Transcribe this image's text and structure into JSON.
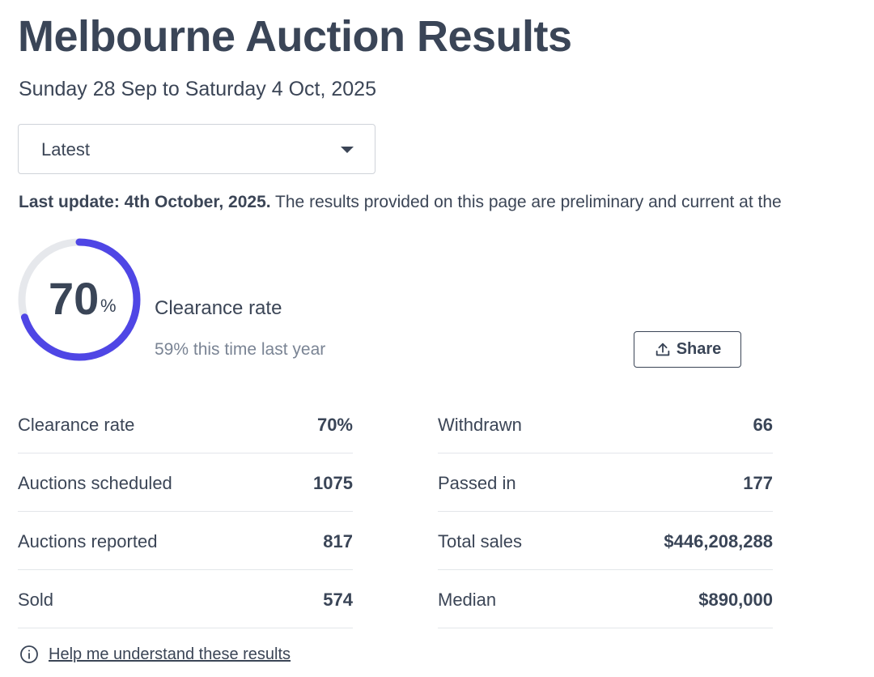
{
  "header": {
    "title": "Melbourne Auction Results",
    "date_range": "Sunday 28 Sep to Saturday 4 Oct, 2025"
  },
  "period_select": {
    "selected": "Latest"
  },
  "update_notice": {
    "bold": "Last update: 4th October, 2025.",
    "text": " The results provided on this page are preliminary and current at the"
  },
  "clearance": {
    "rate_value": "70",
    "rate_unit": "%",
    "rate_fraction": 0.7,
    "label": "Clearance rate",
    "last_year": "59% this time last year",
    "ring_color": "#4f46e5",
    "track_color": "#e6e8ec"
  },
  "share_button": {
    "label": "Share",
    "icon": "upload-icon"
  },
  "stats_left": [
    {
      "label": "Clearance rate",
      "value": "70%"
    },
    {
      "label": "Auctions scheduled",
      "value": "1075"
    },
    {
      "label": "Auctions reported",
      "value": "817"
    },
    {
      "label": "Sold",
      "value": "574"
    }
  ],
  "stats_right": [
    {
      "label": "Withdrawn",
      "value": "66"
    },
    {
      "label": "Passed in",
      "value": "177"
    },
    {
      "label": "Total sales",
      "value": "$446,208,288"
    },
    {
      "label": "Median",
      "value": "$890,000"
    }
  ],
  "help_link": {
    "label": "Help me understand these results",
    "icon": "info-icon"
  }
}
